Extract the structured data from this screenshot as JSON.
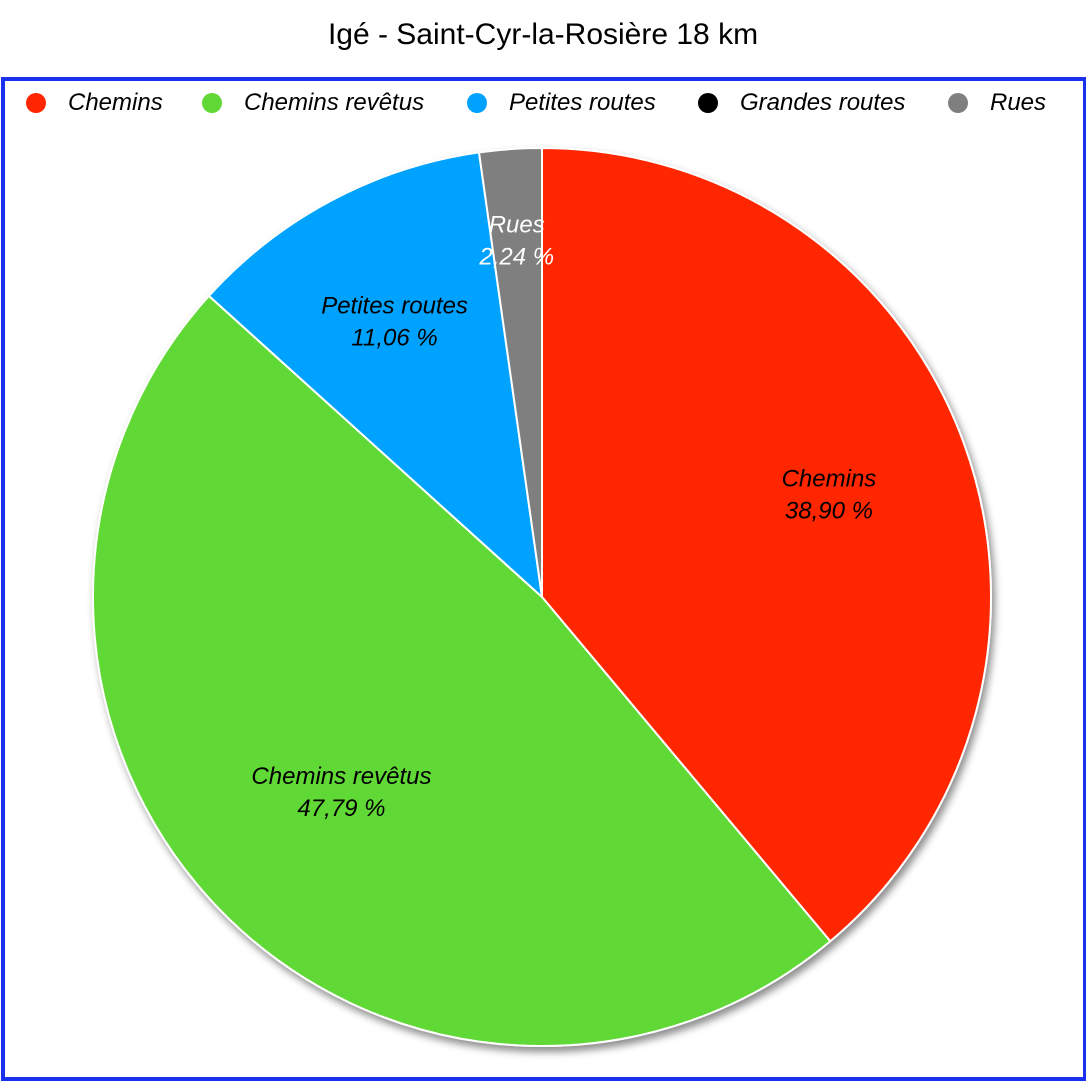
{
  "chart_data": {
    "type": "pie",
    "title": "Igé - Saint-Cyr-la-Rosière 18 km",
    "legend_position": "top",
    "unit": "%",
    "slices": [
      {
        "name": "Chemins",
        "value": 38.9,
        "label": "38,90 %",
        "color": "#ff2600",
        "label_color": "#000000"
      },
      {
        "name": "Chemins revêtus",
        "value": 47.79,
        "label": "47,79 %",
        "color": "#61d836",
        "label_color": "#000000"
      },
      {
        "name": "Petites routes",
        "value": 11.06,
        "label": "11,06 %",
        "color": "#00a2ff",
        "label_color": "#000000"
      },
      {
        "name": "Grandes routes",
        "value": 0,
        "label": "",
        "color": "#000000",
        "label_color": "#ffffff"
      },
      {
        "name": "Rues",
        "value": 2.24,
        "label": "2,24 %",
        "color": "#7f7f7f",
        "label_color": "#ffffff"
      }
    ]
  },
  "frame_color": "#1a32f0"
}
